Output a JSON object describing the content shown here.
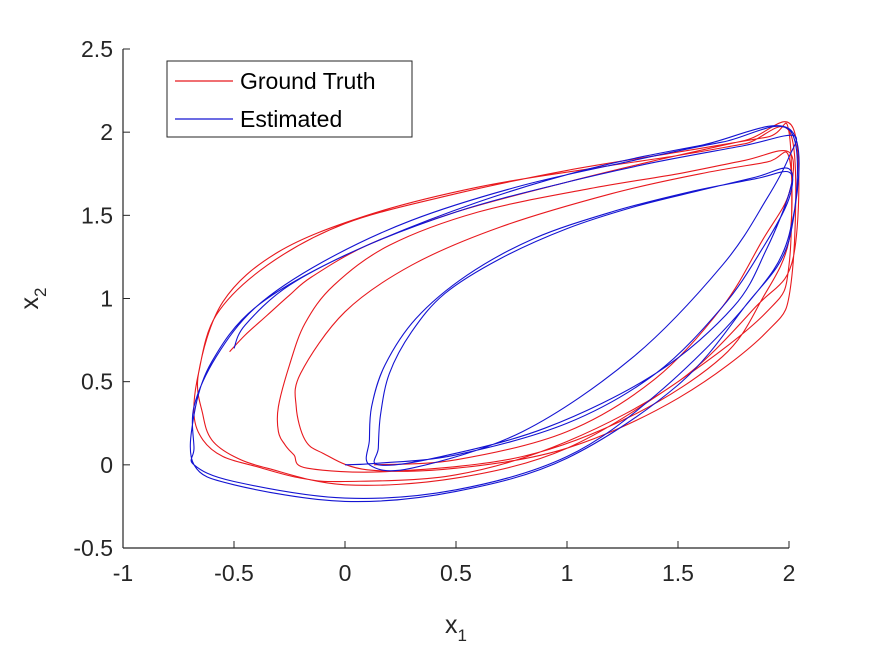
{
  "chart_data": {
    "type": "line",
    "title": "",
    "xlabel": {
      "main": "x",
      "sub": "1"
    },
    "ylabel": {
      "main": "x",
      "sub": "2"
    },
    "xlim": [
      -1,
      2
    ],
    "ylim": [
      -0.5,
      2.5
    ],
    "xticks": [
      -1,
      -0.5,
      0,
      0.5,
      1,
      1.5,
      2
    ],
    "yticks": [
      -0.5,
      0,
      0.5,
      1,
      1.5,
      2,
      2.5
    ],
    "xtick_labels": [
      "-1",
      "-0.5",
      "0",
      "0.5",
      "1",
      "1.5",
      "2"
    ],
    "ytick_labels": [
      "-0.5",
      "0",
      "0.5",
      "1",
      "1.5",
      "2",
      "2.5"
    ],
    "grid": false,
    "legend_position": "top-left",
    "series": [
      {
        "name": "Ground Truth",
        "color": "#e8191e",
        "x": [
          0.13,
          0.5,
          1.0,
          1.4,
          1.7,
          1.88,
          2.0,
          2.0,
          1.8,
          1.5,
          1.1,
          0.6,
          0.2,
          -0.05,
          -0.18,
          -0.25,
          -0.3,
          -0.3,
          -0.27,
          -0.23,
          -0.17,
          0.2,
          0.8,
          1.3,
          1.7,
          1.88,
          2.0,
          2.0,
          1.9,
          1.6,
          1.2,
          0.7,
          0.3,
          0.0,
          -0.2,
          -0.22,
          -0.18,
          -0.1,
          0.1,
          0.5,
          1.0,
          1.5,
          1.9,
          2.01,
          2.01,
          1.8,
          1.5,
          1.1,
          0.6,
          0.1,
          -0.3,
          -0.55,
          -0.66,
          -0.64,
          -0.6,
          -0.5,
          -0.35,
          0.0,
          0.5,
          1.0,
          1.5,
          1.9,
          2.0,
          2.0,
          1.9,
          1.5,
          1.0,
          0.5,
          0.0,
          -0.35,
          -0.58,
          -0.66,
          -0.68,
          -0.64,
          -0.55,
          -0.4,
          -0.2,
          0.0,
          0.5,
          1.0,
          1.5,
          1.85,
          2.02,
          2.02,
          1.8,
          1.4,
          1.0,
          0.5,
          0.1,
          -0.15,
          -0.25,
          -0.35,
          -0.45,
          -0.52
        ],
        "y": [
          0.0,
          0.03,
          0.2,
          0.52,
          0.95,
          1.35,
          1.63,
          1.88,
          1.83,
          1.75,
          1.66,
          1.52,
          1.32,
          1.08,
          0.85,
          0.6,
          0.35,
          0.2,
          0.12,
          0.06,
          -0.02,
          -0.04,
          0.05,
          0.3,
          0.65,
          1.0,
          1.35,
          1.85,
          1.82,
          1.75,
          1.63,
          1.43,
          1.2,
          0.92,
          0.55,
          0.35,
          0.15,
          0.07,
          -0.03,
          -0.02,
          0.1,
          0.4,
          0.8,
          1.1,
          1.98,
          1.93,
          1.86,
          1.78,
          1.67,
          1.5,
          1.28,
          0.98,
          0.55,
          0.3,
          0.15,
          0.05,
          -0.02,
          -0.12,
          -0.08,
          0.1,
          0.5,
          0.92,
          1.2,
          2.0,
          1.97,
          1.88,
          1.77,
          1.63,
          1.45,
          1.2,
          0.9,
          0.55,
          0.3,
          0.15,
          0.05,
          -0.01,
          -0.08,
          -0.1,
          -0.06,
          0.14,
          0.5,
          0.95,
          1.25,
          2.02,
          1.95,
          1.83,
          1.7,
          1.52,
          1.32,
          1.13,
          1.02,
          0.9,
          0.78,
          0.68
        ]
      },
      {
        "name": "Estimated",
        "color": "#1414d2",
        "x": [
          0.0,
          0.15,
          0.5,
          1.0,
          1.4,
          1.7,
          1.88,
          2.0,
          2.0,
          1.85,
          1.6,
          1.3,
          1.0,
          0.7,
          0.45,
          0.3,
          0.2,
          0.16,
          0.15,
          0.15,
          0.4,
          0.9,
          1.4,
          1.75,
          1.9,
          2.0,
          2.0,
          1.85,
          1.55,
          1.2,
          0.85,
          0.55,
          0.32,
          0.18,
          0.12,
          0.11,
          0.11,
          0.3,
          0.8,
          1.3,
          1.7,
          1.9,
          2.0,
          2.02,
          1.8,
          1.4,
          1.0,
          0.5,
          0.0,
          -0.4,
          -0.6,
          -0.68,
          -0.68,
          -0.5,
          0.0,
          0.5,
          1.0,
          1.5,
          1.8,
          2.0,
          2.01,
          1.7,
          1.3,
          0.8,
          0.3,
          -0.1,
          -0.4,
          -0.58,
          -0.68,
          -0.68,
          -0.68,
          -0.5,
          0.0,
          0.5,
          1.0,
          1.4,
          1.8,
          2.0,
          2.01,
          1.6,
          1.1,
          0.6,
          0.1,
          -0.25,
          -0.45,
          -0.5
        ],
        "y": [
          0.0,
          0.01,
          0.06,
          0.25,
          0.55,
          0.95,
          1.3,
          1.6,
          1.78,
          1.73,
          1.65,
          1.55,
          1.42,
          1.24,
          1.03,
          0.8,
          0.55,
          0.3,
          0.1,
          0.0,
          0.04,
          0.22,
          0.55,
          0.95,
          1.3,
          1.63,
          1.76,
          1.72,
          1.64,
          1.52,
          1.36,
          1.14,
          0.88,
          0.6,
          0.35,
          0.15,
          0.0,
          -0.02,
          0.2,
          0.65,
          1.2,
          1.6,
          1.85,
          1.98,
          1.92,
          1.82,
          1.7,
          1.52,
          1.26,
          0.95,
          0.62,
          0.3,
          0.0,
          -0.12,
          -0.22,
          -0.16,
          0.04,
          0.48,
          0.95,
          1.35,
          2.0,
          1.94,
          1.83,
          1.68,
          1.47,
          1.22,
          0.95,
          0.65,
          0.35,
          0.1,
          0.0,
          -0.1,
          -0.2,
          -0.15,
          0.05,
          0.42,
          0.95,
          1.38,
          2.01,
          1.92,
          1.78,
          1.58,
          1.32,
          1.08,
          0.84,
          0.7
        ]
      }
    ]
  }
}
